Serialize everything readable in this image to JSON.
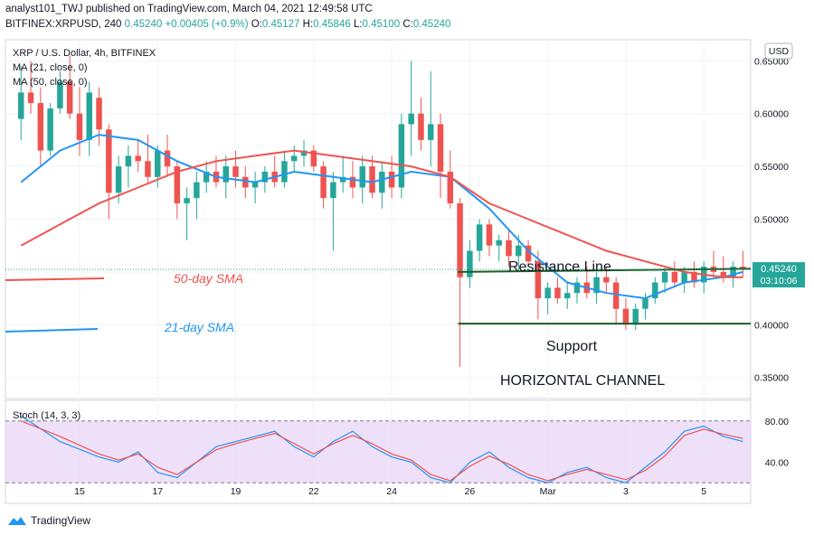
{
  "header": {
    "line1": "analyst101_TWJ published on TradingView.com, March 04, 2021 12:49:58 UTC",
    "symbol_line": "BITFINEX:XRPUSD, 240",
    "last_price": "0.45240",
    "change": "+0.00405 (+0.9%)",
    "ohlc": {
      "o_label": "O:",
      "o": "0.45127",
      "h_label": "H:",
      "h": "0.45846",
      "l_label": "L:",
      "l": "0.45100",
      "c_label": "C:",
      "c": "0.45240"
    }
  },
  "legend": {
    "title": "XRP / U.S. Dollar, 4h, BITFINEX",
    "ma1": "MA (21, close, 0)",
    "ma2": "MA (50, close, 0)"
  },
  "currency_badge": "USD",
  "price_badge": {
    "price": "0.45240",
    "countdown": "03:10:06"
  },
  "annotations": {
    "sma50": "50-day SMA",
    "sma21": "21-day SMA",
    "resistance": "Resistance Line",
    "support": "Support",
    "channel": "HORIZONTAL CHANNEL"
  },
  "footer": {
    "brand": "TradingView"
  },
  "colors": {
    "up": "#26a69a",
    "down": "#ef5350",
    "ma21": "#2196f3",
    "ma50": "#ef5350",
    "stoch_k": "#2196f3",
    "stoch_d": "#ef5350",
    "stoch_band": "#e9d5f7"
  },
  "chart_data": [
    {
      "type": "candlestick",
      "title": "XRP / U.S. Dollar, 4h, BITFINEX",
      "ylim": [
        0.33,
        0.67
      ],
      "y_ticks": [
        "0.65000",
        "0.60000",
        "0.55000",
        "0.50000",
        "0.45000",
        "0.40000",
        "0.35000"
      ],
      "y_tick_values": [
        0.65,
        0.6,
        0.55,
        0.5,
        0.45,
        0.4,
        0.35
      ],
      "x_ticks": [
        "15",
        "17",
        "19",
        "22",
        "24",
        "26",
        "Mar",
        "3",
        "5"
      ],
      "x_tick_positions": [
        1.5,
        3.5,
        5.5,
        7.5,
        9.5,
        11.5,
        13.5,
        15.5,
        17.5
      ],
      "x_range": [
        -0.4,
        18.7
      ],
      "candles": [
        {
          "t": 0.0,
          "o": 0.595,
          "h": 0.645,
          "l": 0.575,
          "c": 0.62
        },
        {
          "t": 0.25,
          "o": 0.62,
          "h": 0.65,
          "l": 0.6,
          "c": 0.61
        },
        {
          "t": 0.5,
          "o": 0.61,
          "h": 0.625,
          "l": 0.55,
          "c": 0.565
        },
        {
          "t": 0.75,
          "o": 0.565,
          "h": 0.61,
          "l": 0.56,
          "c": 0.605
        },
        {
          "t": 1.0,
          "o": 0.605,
          "h": 0.64,
          "l": 0.6,
          "c": 0.63
        },
        {
          "t": 1.25,
          "o": 0.63,
          "h": 0.655,
          "l": 0.595,
          "c": 0.6
        },
        {
          "t": 1.5,
          "o": 0.6,
          "h": 0.625,
          "l": 0.56,
          "c": 0.575
        },
        {
          "t": 1.75,
          "o": 0.575,
          "h": 0.63,
          "l": 0.56,
          "c": 0.62
        },
        {
          "t": 2.0,
          "o": 0.615,
          "h": 0.625,
          "l": 0.57,
          "c": 0.585
        },
        {
          "t": 2.25,
          "o": 0.585,
          "h": 0.59,
          "l": 0.5,
          "c": 0.525
        },
        {
          "t": 2.5,
          "o": 0.525,
          "h": 0.56,
          "l": 0.515,
          "c": 0.55
        },
        {
          "t": 2.75,
          "o": 0.55,
          "h": 0.57,
          "l": 0.53,
          "c": 0.56
        },
        {
          "t": 3.0,
          "o": 0.56,
          "h": 0.575,
          "l": 0.545,
          "c": 0.555
        },
        {
          "t": 3.25,
          "o": 0.555,
          "h": 0.58,
          "l": 0.535,
          "c": 0.54
        },
        {
          "t": 3.5,
          "o": 0.54,
          "h": 0.57,
          "l": 0.53,
          "c": 0.565
        },
        {
          "t": 3.75,
          "o": 0.565,
          "h": 0.58,
          "l": 0.54,
          "c": 0.55
        },
        {
          "t": 4.0,
          "o": 0.55,
          "h": 0.555,
          "l": 0.5,
          "c": 0.515
        },
        {
          "t": 4.25,
          "o": 0.515,
          "h": 0.53,
          "l": 0.48,
          "c": 0.52
        },
        {
          "t": 4.5,
          "o": 0.52,
          "h": 0.545,
          "l": 0.5,
          "c": 0.535
        },
        {
          "t": 4.75,
          "o": 0.535,
          "h": 0.555,
          "l": 0.525,
          "c": 0.545
        },
        {
          "t": 5.0,
          "o": 0.545,
          "h": 0.56,
          "l": 0.53,
          "c": 0.535
        },
        {
          "t": 5.25,
          "o": 0.535,
          "h": 0.56,
          "l": 0.52,
          "c": 0.55
        },
        {
          "t": 5.5,
          "o": 0.55,
          "h": 0.565,
          "l": 0.53,
          "c": 0.54
        },
        {
          "t": 5.75,
          "o": 0.54,
          "h": 0.55,
          "l": 0.52,
          "c": 0.53
        },
        {
          "t": 6.0,
          "o": 0.53,
          "h": 0.545,
          "l": 0.515,
          "c": 0.535
        },
        {
          "t": 6.25,
          "o": 0.535,
          "h": 0.55,
          "l": 0.525,
          "c": 0.545
        },
        {
          "t": 6.5,
          "o": 0.545,
          "h": 0.56,
          "l": 0.53,
          "c": 0.535
        },
        {
          "t": 6.75,
          "o": 0.535,
          "h": 0.565,
          "l": 0.53,
          "c": 0.555
        },
        {
          "t": 7.0,
          "o": 0.555,
          "h": 0.57,
          "l": 0.545,
          "c": 0.56
        },
        {
          "t": 7.25,
          "o": 0.56,
          "h": 0.575,
          "l": 0.55,
          "c": 0.565
        },
        {
          "t": 7.5,
          "o": 0.565,
          "h": 0.57,
          "l": 0.545,
          "c": 0.55
        },
        {
          "t": 7.75,
          "o": 0.55,
          "h": 0.555,
          "l": 0.51,
          "c": 0.52
        },
        {
          "t": 8.0,
          "o": 0.52,
          "h": 0.545,
          "l": 0.47,
          "c": 0.535
        },
        {
          "t": 8.25,
          "o": 0.535,
          "h": 0.56,
          "l": 0.525,
          "c": 0.54
        },
        {
          "t": 8.5,
          "o": 0.54,
          "h": 0.555,
          "l": 0.52,
          "c": 0.53
        },
        {
          "t": 8.75,
          "o": 0.53,
          "h": 0.56,
          "l": 0.515,
          "c": 0.55
        },
        {
          "t": 9.0,
          "o": 0.55,
          "h": 0.56,
          "l": 0.52,
          "c": 0.525
        },
        {
          "t": 9.25,
          "o": 0.525,
          "h": 0.555,
          "l": 0.51,
          "c": 0.545
        },
        {
          "t": 9.5,
          "o": 0.545,
          "h": 0.56,
          "l": 0.52,
          "c": 0.53
        },
        {
          "t": 9.75,
          "o": 0.53,
          "h": 0.6,
          "l": 0.52,
          "c": 0.59
        },
        {
          "t": 10.0,
          "o": 0.59,
          "h": 0.65,
          "l": 0.56,
          "c": 0.6
        },
        {
          "t": 10.25,
          "o": 0.6,
          "h": 0.615,
          "l": 0.565,
          "c": 0.575
        },
        {
          "t": 10.5,
          "o": 0.575,
          "h": 0.64,
          "l": 0.55,
          "c": 0.59
        },
        {
          "t": 10.75,
          "o": 0.59,
          "h": 0.6,
          "l": 0.52,
          "c": 0.545
        },
        {
          "t": 11.0,
          "o": 0.545,
          "h": 0.565,
          "l": 0.51,
          "c": 0.515
        },
        {
          "t": 11.25,
          "o": 0.515,
          "h": 0.52,
          "l": 0.36,
          "c": 0.445
        },
        {
          "t": 11.5,
          "o": 0.445,
          "h": 0.48,
          "l": 0.435,
          "c": 0.47
        },
        {
          "t": 11.75,
          "o": 0.47,
          "h": 0.5,
          "l": 0.46,
          "c": 0.495
        },
        {
          "t": 12.0,
          "o": 0.495,
          "h": 0.5,
          "l": 0.465,
          "c": 0.475
        },
        {
          "t": 12.25,
          "o": 0.475,
          "h": 0.485,
          "l": 0.46,
          "c": 0.48
        },
        {
          "t": 12.5,
          "o": 0.48,
          "h": 0.49,
          "l": 0.455,
          "c": 0.465
        },
        {
          "t": 12.75,
          "o": 0.465,
          "h": 0.485,
          "l": 0.45,
          "c": 0.475
        },
        {
          "t": 13.0,
          "o": 0.475,
          "h": 0.48,
          "l": 0.455,
          "c": 0.46
        },
        {
          "t": 13.25,
          "o": 0.46,
          "h": 0.47,
          "l": 0.405,
          "c": 0.425
        },
        {
          "t": 13.5,
          "o": 0.425,
          "h": 0.44,
          "l": 0.41,
          "c": 0.435
        },
        {
          "t": 13.75,
          "o": 0.435,
          "h": 0.445,
          "l": 0.42,
          "c": 0.425
        },
        {
          "t": 14.0,
          "o": 0.425,
          "h": 0.44,
          "l": 0.415,
          "c": 0.43
        },
        {
          "t": 14.25,
          "o": 0.43,
          "h": 0.445,
          "l": 0.42,
          "c": 0.44
        },
        {
          "t": 14.5,
          "o": 0.44,
          "h": 0.455,
          "l": 0.425,
          "c": 0.43
        },
        {
          "t": 14.75,
          "o": 0.43,
          "h": 0.45,
          "l": 0.42,
          "c": 0.445
        },
        {
          "t": 15.0,
          "o": 0.445,
          "h": 0.455,
          "l": 0.43,
          "c": 0.44
        },
        {
          "t": 15.25,
          "o": 0.44,
          "h": 0.445,
          "l": 0.4,
          "c": 0.415
        },
        {
          "t": 15.5,
          "o": 0.415,
          "h": 0.425,
          "l": 0.395,
          "c": 0.4
        },
        {
          "t": 15.75,
          "o": 0.4,
          "h": 0.42,
          "l": 0.395,
          "c": 0.415
        },
        {
          "t": 16.0,
          "o": 0.415,
          "h": 0.43,
          "l": 0.405,
          "c": 0.425
        },
        {
          "t": 16.25,
          "o": 0.425,
          "h": 0.445,
          "l": 0.42,
          "c": 0.44
        },
        {
          "t": 16.5,
          "o": 0.44,
          "h": 0.455,
          "l": 0.43,
          "c": 0.45
        },
        {
          "t": 16.75,
          "o": 0.45,
          "h": 0.46,
          "l": 0.435,
          "c": 0.44
        },
        {
          "t": 17.0,
          "o": 0.44,
          "h": 0.455,
          "l": 0.43,
          "c": 0.45
        },
        {
          "t": 17.25,
          "o": 0.45,
          "h": 0.46,
          "l": 0.435,
          "c": 0.44
        },
        {
          "t": 17.5,
          "o": 0.44,
          "h": 0.46,
          "l": 0.43,
          "c": 0.455
        },
        {
          "t": 17.75,
          "o": 0.455,
          "h": 0.47,
          "l": 0.445,
          "c": 0.45
        },
        {
          "t": 18.0,
          "o": 0.45,
          "h": 0.465,
          "l": 0.44,
          "c": 0.445
        },
        {
          "t": 18.25,
          "o": 0.445,
          "h": 0.46,
          "l": 0.435,
          "c": 0.455
        },
        {
          "t": 18.5,
          "o": 0.455,
          "h": 0.47,
          "l": 0.445,
          "c": 0.452
        }
      ],
      "series": [
        {
          "name": "MA (21, close, 0)",
          "points": [
            [
              0.0,
              0.535
            ],
            [
              1.0,
              0.565
            ],
            [
              2.0,
              0.58
            ],
            [
              3.0,
              0.575
            ],
            [
              4.0,
              0.555
            ],
            [
              5.0,
              0.54
            ],
            [
              6.0,
              0.535
            ],
            [
              7.0,
              0.545
            ],
            [
              8.0,
              0.54
            ],
            [
              9.0,
              0.535
            ],
            [
              10.0,
              0.545
            ],
            [
              11.0,
              0.54
            ],
            [
              12.0,
              0.51
            ],
            [
              13.0,
              0.47
            ],
            [
              14.0,
              0.44
            ],
            [
              15.0,
              0.43
            ],
            [
              16.0,
              0.425
            ],
            [
              17.0,
              0.44
            ],
            [
              18.0,
              0.445
            ],
            [
              18.5,
              0.45
            ]
          ]
        },
        {
          "name": "MA (50, close, 0)",
          "points": [
            [
              0.0,
              0.475
            ],
            [
              1.0,
              0.495
            ],
            [
              2.0,
              0.515
            ],
            [
              3.0,
              0.53
            ],
            [
              4.0,
              0.545
            ],
            [
              5.0,
              0.555
            ],
            [
              6.0,
              0.56
            ],
            [
              7.0,
              0.565
            ],
            [
              8.0,
              0.56
            ],
            [
              9.0,
              0.555
            ],
            [
              10.0,
              0.55
            ],
            [
              11.0,
              0.54
            ],
            [
              12.0,
              0.515
            ],
            [
              13.0,
              0.5
            ],
            [
              14.0,
              0.485
            ],
            [
              15.0,
              0.47
            ],
            [
              16.0,
              0.46
            ],
            [
              17.0,
              0.45
            ],
            [
              18.0,
              0.445
            ],
            [
              18.5,
              0.445
            ]
          ]
        }
      ],
      "lines": [
        {
          "name": "Resistance Line",
          "from": [
            11.2,
            0.45
          ],
          "to": [
            18.7,
            0.453
          ]
        },
        {
          "name": "Support",
          "from": [
            11.2,
            0.401
          ],
          "to": [
            18.7,
            0.401
          ]
        }
      ],
      "last_price": 0.4524
    },
    {
      "type": "line",
      "title": "Stoch (14, 3, 3)",
      "ylim": [
        0,
        100
      ],
      "y_ticks": [
        "80.00",
        "40.00"
      ],
      "y_tick_values": [
        80,
        40
      ],
      "band": [
        20,
        80
      ],
      "series": [
        {
          "name": "%K",
          "points": [
            [
              0.0,
              85
            ],
            [
              1.0,
              60
            ],
            [
              2.0,
              45
            ],
            [
              2.5,
              40
            ],
            [
              3.0,
              50
            ],
            [
              3.5,
              30
            ],
            [
              4.0,
              25
            ],
            [
              5.0,
              55
            ],
            [
              5.5,
              60
            ],
            [
              6.0,
              65
            ],
            [
              6.5,
              70
            ],
            [
              7.0,
              55
            ],
            [
              7.5,
              45
            ],
            [
              8.0,
              60
            ],
            [
              8.5,
              70
            ],
            [
              9.0,
              55
            ],
            [
              9.5,
              45
            ],
            [
              10.0,
              40
            ],
            [
              10.5,
              25
            ],
            [
              11.0,
              20
            ],
            [
              11.5,
              40
            ],
            [
              12.0,
              50
            ],
            [
              12.5,
              35
            ],
            [
              13.0,
              25
            ],
            [
              13.5,
              20
            ],
            [
              14.0,
              30
            ],
            [
              14.5,
              35
            ],
            [
              15.0,
              25
            ],
            [
              15.5,
              20
            ],
            [
              16.0,
              35
            ],
            [
              16.5,
              50
            ],
            [
              17.0,
              70
            ],
            [
              17.5,
              75
            ],
            [
              18.0,
              65
            ],
            [
              18.5,
              60
            ]
          ]
        },
        {
          "name": "%D",
          "points": [
            [
              0.0,
              80
            ],
            [
              1.0,
              65
            ],
            [
              2.0,
              48
            ],
            [
              2.5,
              42
            ],
            [
              3.0,
              48
            ],
            [
              3.5,
              35
            ],
            [
              4.0,
              28
            ],
            [
              5.0,
              52
            ],
            [
              5.5,
              58
            ],
            [
              6.0,
              63
            ],
            [
              6.5,
              68
            ],
            [
              7.0,
              58
            ],
            [
              7.5,
              48
            ],
            [
              8.0,
              58
            ],
            [
              8.5,
              66
            ],
            [
              9.0,
              58
            ],
            [
              9.5,
              48
            ],
            [
              10.0,
              42
            ],
            [
              10.5,
              28
            ],
            [
              11.0,
              22
            ],
            [
              11.5,
              36
            ],
            [
              12.0,
              46
            ],
            [
              12.5,
              38
            ],
            [
              13.0,
              28
            ],
            [
              13.5,
              22
            ],
            [
              14.0,
              28
            ],
            [
              14.5,
              33
            ],
            [
              15.0,
              28
            ],
            [
              15.5,
              23
            ],
            [
              16.0,
              32
            ],
            [
              16.5,
              46
            ],
            [
              17.0,
              66
            ],
            [
              17.5,
              72
            ],
            [
              18.0,
              67
            ],
            [
              18.5,
              63
            ]
          ]
        }
      ]
    }
  ]
}
